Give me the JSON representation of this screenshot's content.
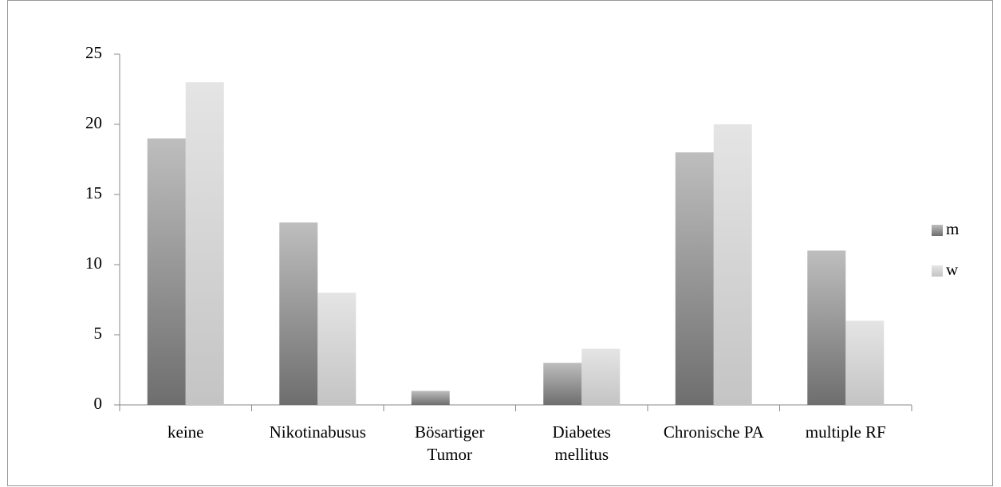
{
  "chart_data": {
    "type": "bar",
    "categories": [
      "keine",
      "Nikotinabusus",
      "Bösartiger\nTumor",
      "Diabetes\nmellitus",
      "Chronische PA",
      "multiple RF"
    ],
    "series": [
      {
        "name": "m",
        "color": "#6e6e6e",
        "values": [
          19,
          13,
          1,
          3,
          18,
          11
        ]
      },
      {
        "name": "w",
        "color": "#c4c4c4",
        "values": [
          23,
          8,
          0,
          4,
          20,
          6
        ]
      }
    ],
    "ylim": [
      0,
      25
    ],
    "yticks": [
      0,
      5,
      10,
      15,
      20,
      25
    ],
    "grid": false,
    "legend": "right"
  }
}
